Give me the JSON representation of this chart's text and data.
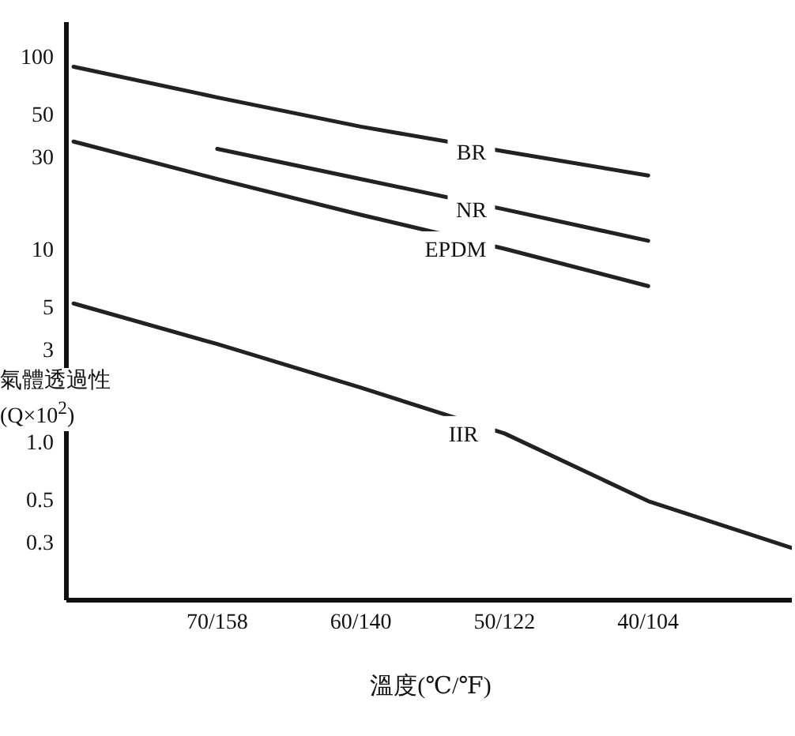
{
  "chart_data": {
    "type": "line",
    "xlabel": "溫度(℃/℉)",
    "ylabel": "氣體透過性\n(Q×10$^{2}$)",
    "log": "y",
    "legend": false,
    "marker": "none",
    "line_style": "solid",
    "categories": [
      null,
      "70/158",
      "60/140",
      "50/122",
      "40/104",
      null
    ],
    "ylim": [
      0.15,
      150
    ],
    "yticks": [
      100,
      50,
      30,
      10,
      5,
      3,
      {
        "value": 1,
        "label": "1.0"
      },
      0.5,
      0.3
    ],
    "series": [
      {
        "name": "BR",
        "color": "#222222",
        "values": [
          88,
          61,
          43,
          32,
          24,
          null
        ]
      },
      {
        "name": "NR",
        "color": "#222222",
        "values": [
          null,
          33,
          23,
          16,
          11,
          null
        ]
      },
      {
        "name": "EPDM",
        "color": "#222222",
        "values": [
          36,
          23,
          15,
          10,
          6.4,
          null
        ]
      },
      {
        "name": "IIR",
        "color": "#222222",
        "values": [
          5.2,
          3.2,
          1.9,
          1.1,
          0.49,
          0.28
        ]
      }
    ]
  }
}
